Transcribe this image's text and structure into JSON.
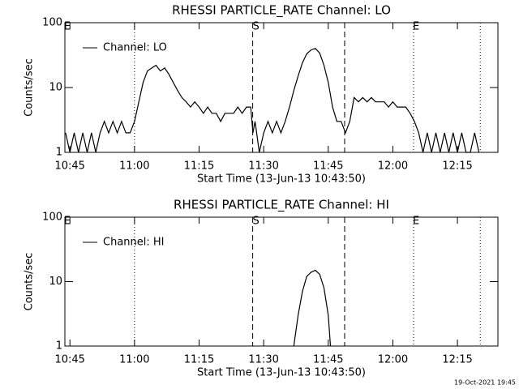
{
  "chart_data": [
    {
      "type": "line",
      "title": "RHESSI PARTICLE_RATE Channel: LO",
      "xlabel": "Start Time (13-Jun-13 10:43:50)",
      "ylabel": "Counts/sec",
      "xlim": [
        643.83,
        744.4
      ],
      "xticks": [
        {
          "value": 645,
          "label": "10:45"
        },
        {
          "value": 660,
          "label": "11:00"
        },
        {
          "value": 675,
          "label": "11:15"
        },
        {
          "value": 690,
          "label": "11:30"
        },
        {
          "value": 705,
          "label": "11:45"
        },
        {
          "value": 720,
          "label": "12:00"
        },
        {
          "value": 735,
          "label": "12:15"
        }
      ],
      "ylim": [
        1,
        100
      ],
      "yticks": [
        1,
        10,
        100
      ],
      "log_y": true,
      "vlines": [
        {
          "x": 660,
          "style": "dotted"
        },
        {
          "x": 687.45,
          "style": "dashed"
        },
        {
          "x": 708.8,
          "style": "dashed"
        },
        {
          "x": 724.8,
          "style": "dotted"
        },
        {
          "x": 740.3,
          "style": "dotted"
        }
      ],
      "annotations": [
        {
          "text": "E",
          "x": 644.4
        },
        {
          "text": "S",
          "x": 688.2
        },
        {
          "text": "E",
          "x": 725.4
        }
      ],
      "x": [
        644,
        645,
        646,
        647,
        648,
        649,
        650,
        651,
        652,
        653,
        654,
        655,
        656,
        657,
        658,
        659,
        660,
        661,
        662,
        663,
        664,
        665,
        666,
        667,
        668,
        669,
        670,
        671,
        672,
        673,
        674,
        675,
        676,
        677,
        678,
        679,
        680,
        681,
        682,
        683,
        684,
        685,
        686,
        687,
        687.5,
        688,
        689,
        690,
        691,
        692,
        693,
        694,
        695,
        696,
        697,
        698,
        699,
        700,
        701,
        702,
        703,
        704,
        705,
        706,
        707,
        708,
        709,
        710,
        711,
        712,
        713,
        714,
        715,
        716,
        717,
        718,
        719,
        720,
        721,
        722,
        723,
        724,
        725,
        726,
        727,
        728,
        729,
        730,
        731,
        732,
        733,
        734,
        735,
        736,
        737,
        738,
        739,
        740
      ],
      "series": [
        {
          "name": "Channel: LO",
          "color": "#000000",
          "values": [
            2,
            1,
            2,
            1,
            2,
            1,
            2,
            1,
            2,
            3,
            2,
            3,
            2,
            3,
            2,
            2,
            3,
            6,
            12,
            18,
            20,
            22,
            18,
            20,
            16,
            12,
            9,
            7,
            6,
            5,
            6,
            5,
            4,
            5,
            4,
            4,
            3,
            4,
            4,
            4,
            5,
            4,
            5,
            5,
            2,
            3,
            1,
            2,
            3,
            2,
            3,
            2,
            3,
            5,
            9,
            15,
            24,
            33,
            38,
            40,
            34,
            22,
            12,
            5,
            3,
            3,
            2,
            3,
            7,
            6,
            7,
            6,
            7,
            6,
            6,
            6,
            5,
            6,
            5,
            5,
            5,
            4,
            3,
            2,
            1,
            2,
            1,
            2,
            1,
            2,
            1,
            2,
            1,
            2,
            1,
            1,
            2,
            1
          ]
        }
      ]
    },
    {
      "type": "line",
      "title": "RHESSI PARTICLE_RATE Channel: HI",
      "xlabel": "Start Time (13-Jun-13 10:43:50)",
      "ylabel": "Counts/sec",
      "xlim": [
        643.83,
        744.4
      ],
      "xticks": [
        {
          "value": 645,
          "label": "10:45"
        },
        {
          "value": 660,
          "label": "11:00"
        },
        {
          "value": 675,
          "label": "11:15"
        },
        {
          "value": 690,
          "label": "11:30"
        },
        {
          "value": 705,
          "label": "11:45"
        },
        {
          "value": 720,
          "label": "12:00"
        },
        {
          "value": 735,
          "label": "12:15"
        }
      ],
      "ylim": [
        1,
        100
      ],
      "yticks": [
        1,
        10,
        100
      ],
      "log_y": true,
      "vlines": [
        {
          "x": 660,
          "style": "dotted"
        },
        {
          "x": 687.45,
          "style": "dashed"
        },
        {
          "x": 708.8,
          "style": "dashed"
        },
        {
          "x": 724.8,
          "style": "dotted"
        },
        {
          "x": 740.3,
          "style": "dotted"
        }
      ],
      "annotations": [
        {
          "text": "E",
          "x": 644.4
        },
        {
          "text": "S",
          "x": 688.2
        },
        {
          "text": "E",
          "x": 725.4
        }
      ],
      "x": [
        697,
        698,
        699,
        700,
        701,
        702,
        703,
        704,
        705,
        705.5
      ],
      "series": [
        {
          "name": "Channel: HI",
          "color": "#000000",
          "values": [
            1,
            3,
            7,
            12,
            14,
            15,
            13,
            8,
            3,
            1
          ]
        }
      ]
    }
  ],
  "footer": "19-Oct-2021 19:45"
}
